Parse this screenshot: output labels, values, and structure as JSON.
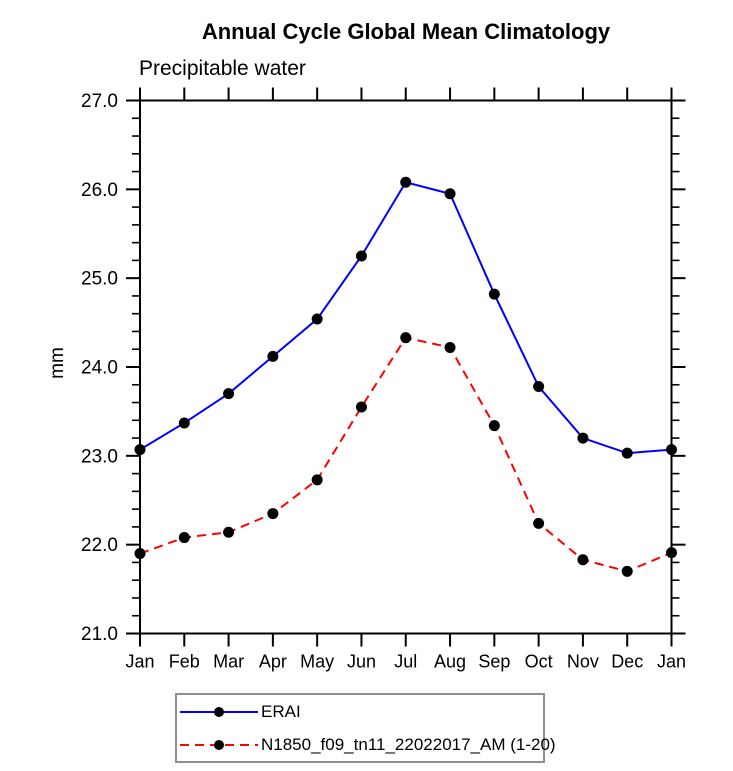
{
  "chart_data": {
    "type": "line",
    "title": "Annual Cycle Global Mean Climatology",
    "subtitle": "Precipitable water",
    "xlabel": "",
    "ylabel": "mm",
    "categories": [
      "Jan",
      "Feb",
      "Mar",
      "Apr",
      "May",
      "Jun",
      "Jul",
      "Aug",
      "Sep",
      "Oct",
      "Nov",
      "Dec",
      "Jan"
    ],
    "ylim": [
      21.0,
      27.0
    ],
    "ytick_step": 1.0,
    "yminor_step": 0.2,
    "ytick_labels": [
      "21.0",
      "22.0",
      "23.0",
      "24.0",
      "25.0",
      "26.0",
      "27.0"
    ],
    "grid": false,
    "legend_position": "bottom-left",
    "axis_color": "#000000",
    "marker_color": "#000000",
    "legend_border_color": "#8f8f8f",
    "series": [
      {
        "name": "ERAI",
        "color": "#0000ff",
        "style": "solid",
        "dash": "none",
        "marker": "filled-circle",
        "values": [
          23.07,
          23.37,
          23.7,
          24.12,
          24.54,
          25.25,
          26.08,
          25.95,
          24.82,
          23.78,
          23.2,
          23.03,
          23.07
        ]
      },
      {
        "name": "N1850_f09_tn11_22022017_AM (1-20)",
        "color": "#ff0000",
        "style": "dashed",
        "dash": "9,6",
        "marker": "filled-circle",
        "values": [
          21.9,
          22.08,
          22.14,
          22.35,
          22.73,
          23.55,
          24.33,
          24.22,
          23.34,
          22.24,
          21.83,
          21.7,
          21.91
        ]
      }
    ]
  }
}
